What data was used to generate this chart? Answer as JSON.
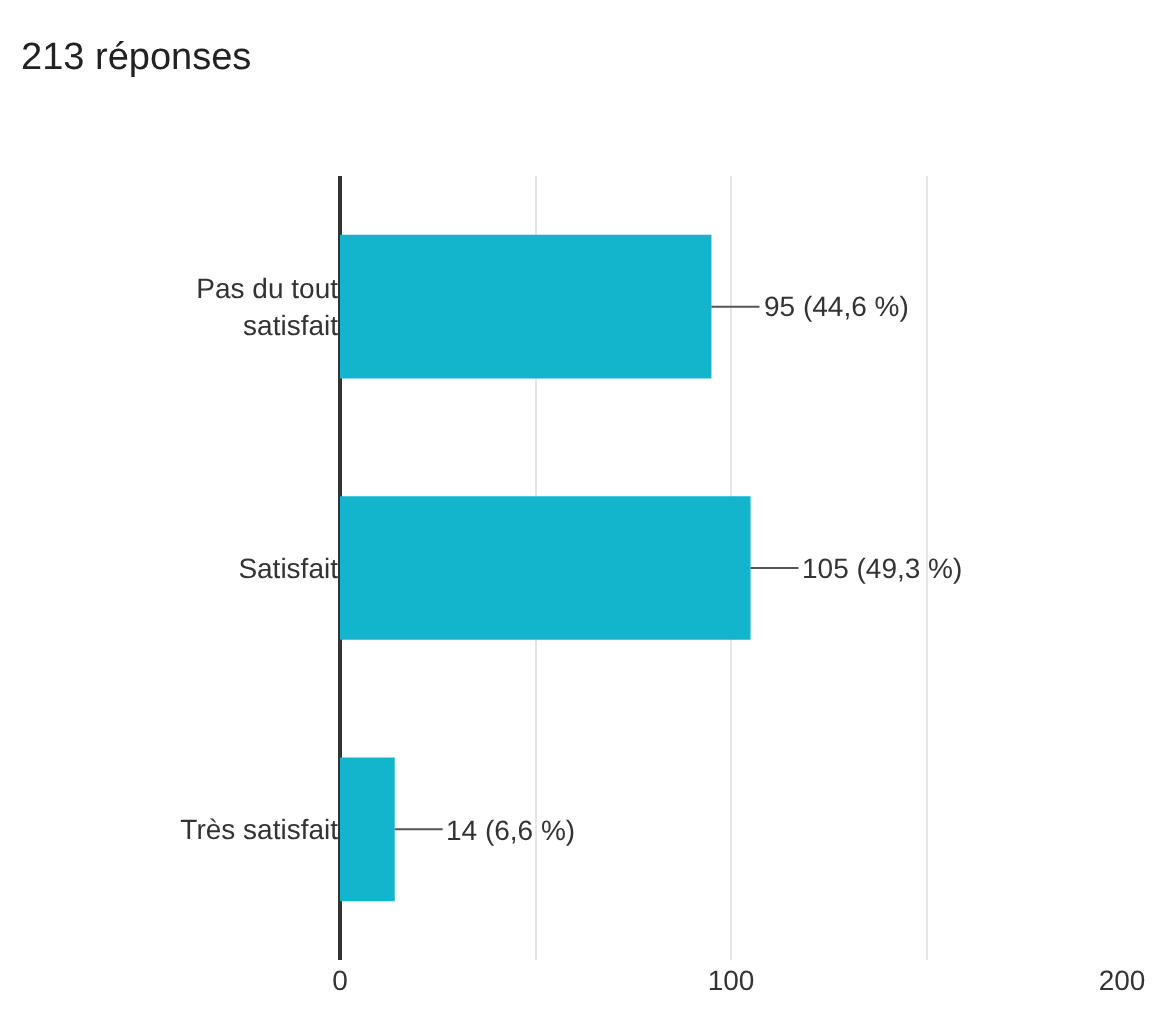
{
  "chart_data": {
    "type": "bar",
    "title": "213 réponses",
    "orientation": "horizontal",
    "categories": [
      "Pas du tout satisfait",
      "Satisfait",
      "Très satisfait"
    ],
    "values": [
      95,
      105,
      14
    ],
    "value_labels": [
      "95 (44,6 %)",
      "105 (49,3 %)",
      "14 (6,6 %)"
    ],
    "color": "#12b5cb",
    "xlim": [
      0,
      200
    ],
    "xticks": [
      0,
      {
        "value": 50,
        "label": null
      },
      100,
      {
        "value": 150,
        "label": null
      },
      200
    ],
    "grid": "x"
  }
}
